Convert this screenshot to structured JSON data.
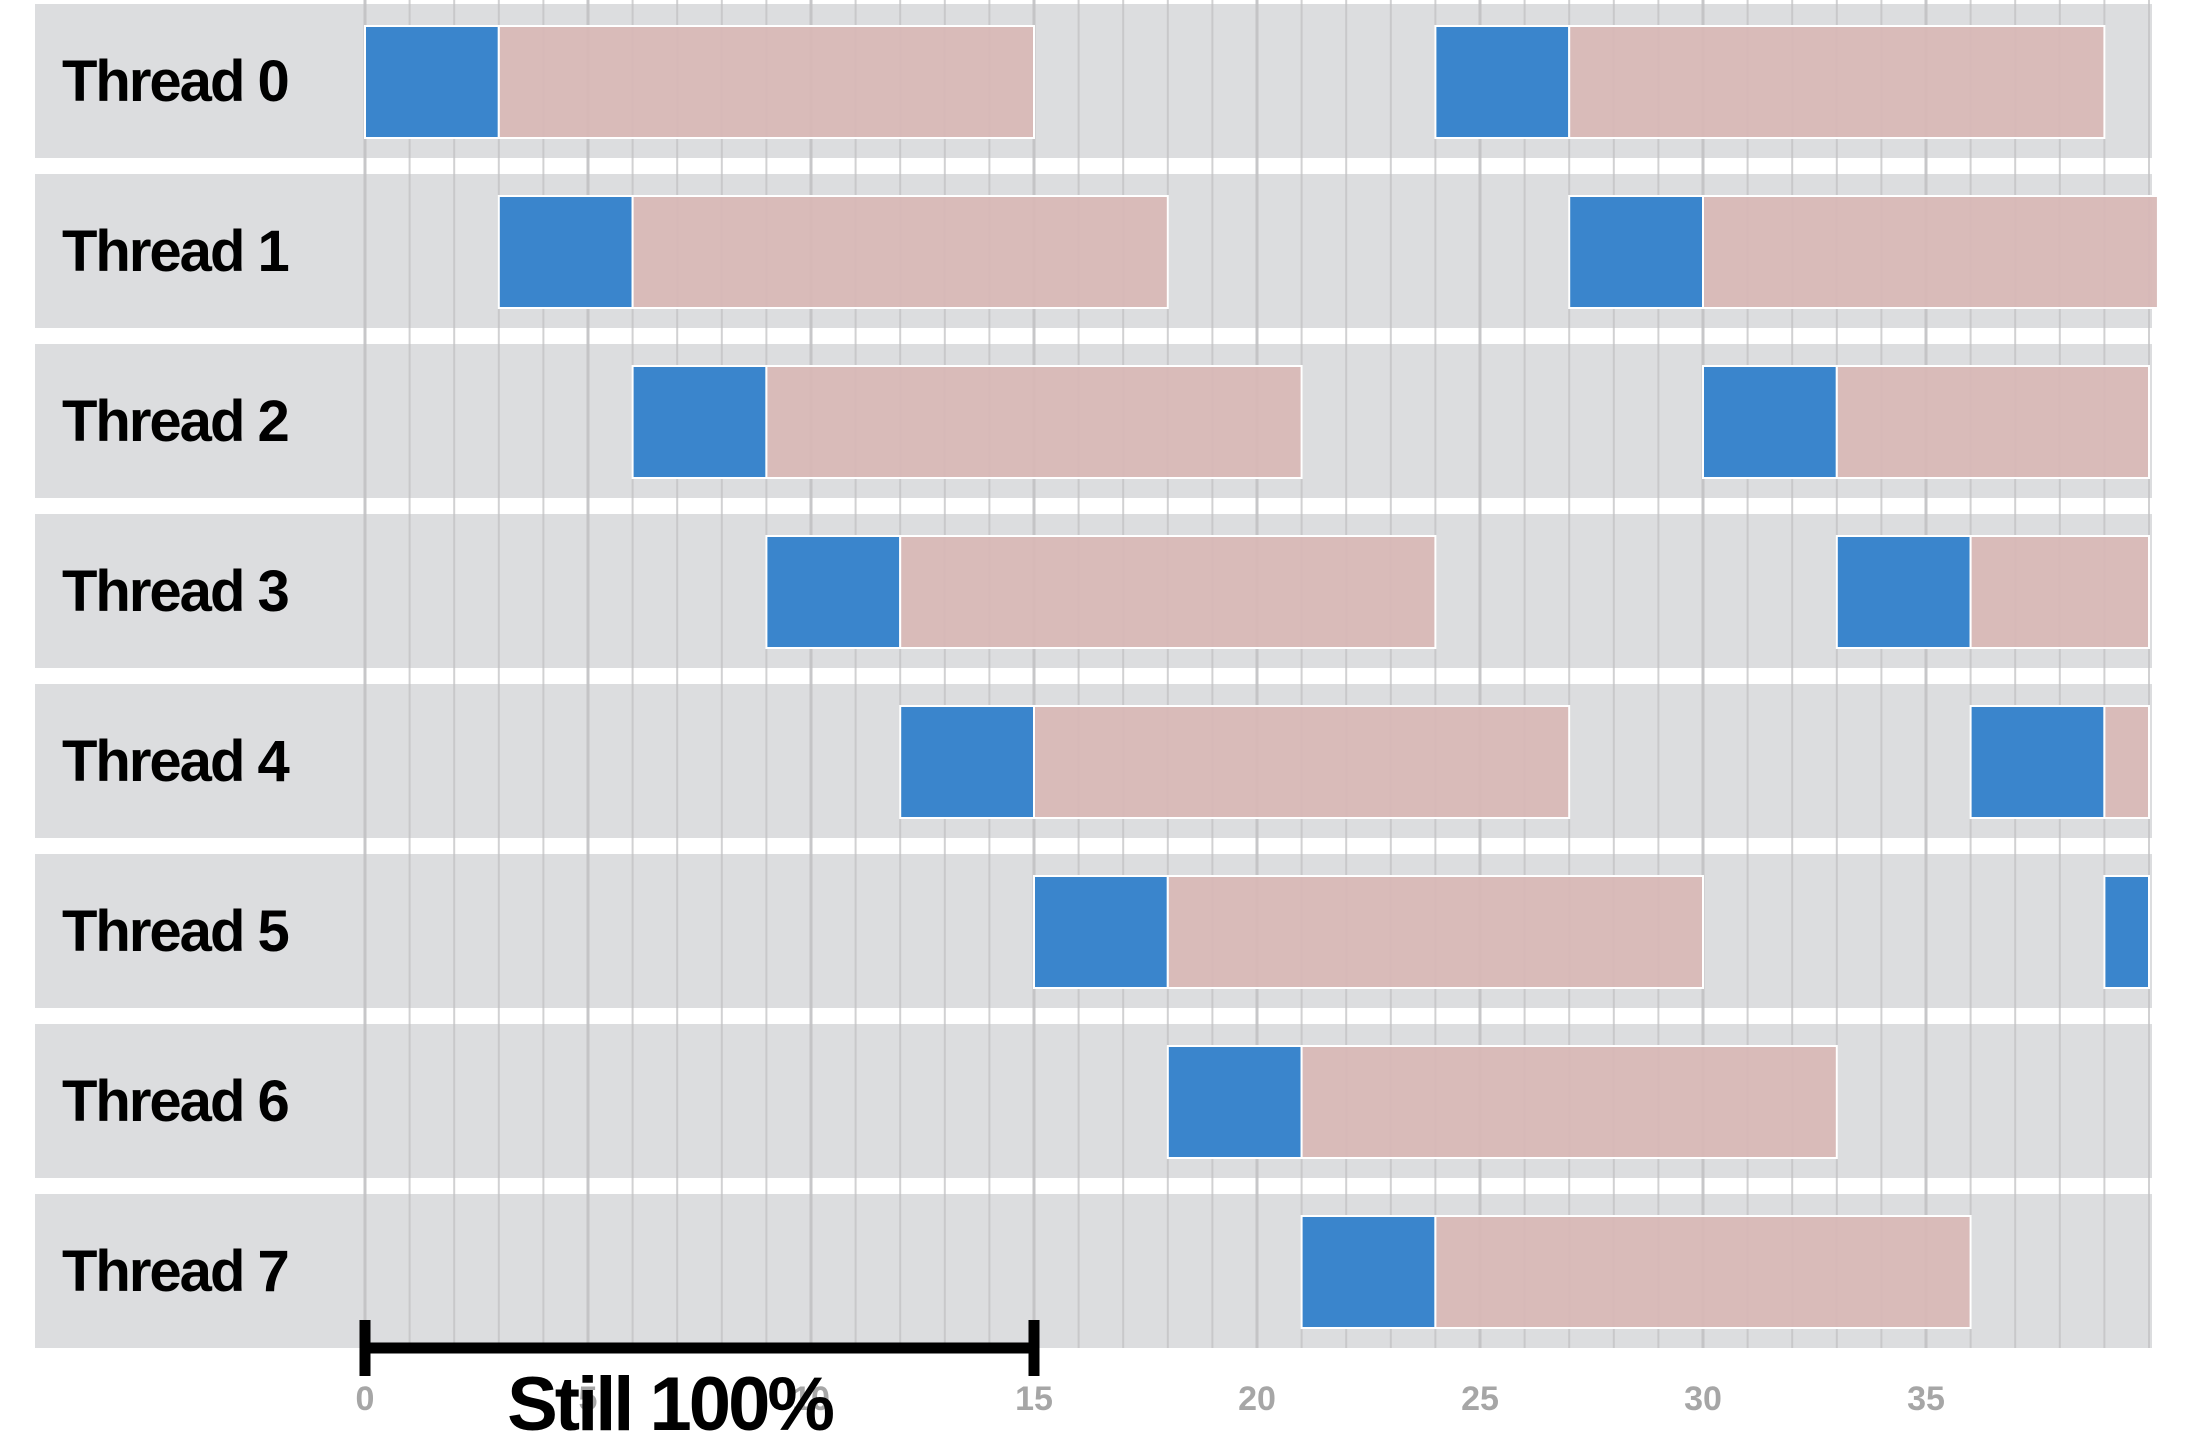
{
  "colors": {
    "row_background": "#dcdddf",
    "compute": "#3a85cc",
    "stall": "#d8b8b6",
    "grid": "#c2c2c4",
    "tick_label": "#a6a6a6",
    "annotation": "#000000"
  },
  "chart_data": {
    "type": "gantt",
    "x_range": [
      0,
      40
    ],
    "x_ticks": [
      "0",
      "5",
      "10",
      "15",
      "20",
      "25",
      "30",
      "35"
    ],
    "minor_grid_step": 1,
    "threads": [
      {
        "label": "Thread 0",
        "segments": [
          {
            "kind": "compute",
            "start": 0,
            "end": 3
          },
          {
            "kind": "stall",
            "start": 3,
            "end": 15
          },
          {
            "kind": "compute",
            "start": 24,
            "end": 27
          },
          {
            "kind": "stall",
            "start": 27,
            "end": 39
          }
        ]
      },
      {
        "label": "Thread 1",
        "segments": [
          {
            "kind": "compute",
            "start": 3,
            "end": 6
          },
          {
            "kind": "stall",
            "start": 6,
            "end": 18
          },
          {
            "kind": "compute",
            "start": 27,
            "end": 30
          },
          {
            "kind": "stall",
            "start": 30,
            "end": 40.2
          }
        ]
      },
      {
        "label": "Thread 2",
        "segments": [
          {
            "kind": "compute",
            "start": 6,
            "end": 9
          },
          {
            "kind": "stall",
            "start": 9,
            "end": 21
          },
          {
            "kind": "compute",
            "start": 30,
            "end": 33
          },
          {
            "kind": "stall",
            "start": 33,
            "end": 40
          }
        ]
      },
      {
        "label": "Thread 3",
        "segments": [
          {
            "kind": "compute",
            "start": 9,
            "end": 12
          },
          {
            "kind": "stall",
            "start": 12,
            "end": 24
          },
          {
            "kind": "compute",
            "start": 33,
            "end": 36
          },
          {
            "kind": "stall",
            "start": 36,
            "end": 40
          }
        ]
      },
      {
        "label": "Thread 4",
        "segments": [
          {
            "kind": "compute",
            "start": 12,
            "end": 15
          },
          {
            "kind": "stall",
            "start": 15,
            "end": 27
          },
          {
            "kind": "compute",
            "start": 36,
            "end": 39
          },
          {
            "kind": "stall",
            "start": 39,
            "end": 40
          }
        ]
      },
      {
        "label": "Thread 5",
        "segments": [
          {
            "kind": "compute",
            "start": 15,
            "end": 18
          },
          {
            "kind": "stall",
            "start": 18,
            "end": 30
          },
          {
            "kind": "compute",
            "start": 39,
            "end": 40
          }
        ]
      },
      {
        "label": "Thread 6",
        "segments": [
          {
            "kind": "compute",
            "start": 18,
            "end": 21
          },
          {
            "kind": "stall",
            "start": 21,
            "end": 33
          }
        ]
      },
      {
        "label": "Thread 7",
        "segments": [
          {
            "kind": "compute",
            "start": 21,
            "end": 24
          },
          {
            "kind": "stall",
            "start": 24,
            "end": 36
          }
        ]
      }
    ],
    "annotation": {
      "label": "Still 100%",
      "start": 0,
      "end": 15
    }
  }
}
